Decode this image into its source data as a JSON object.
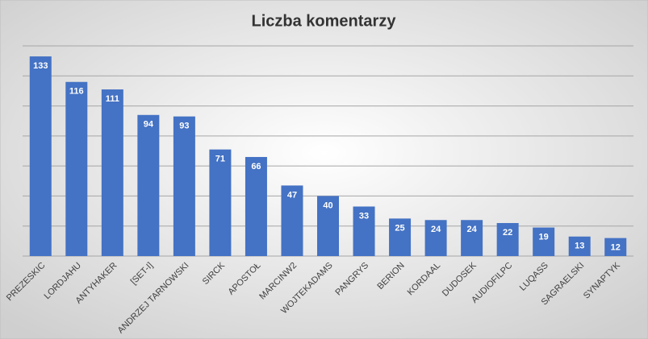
{
  "chart_data": {
    "type": "bar",
    "title": "Liczba komentarzy",
    "categories": [
      "PREZESKIC",
      "LORDJAHU",
      "ANTYHAKER",
      "[SET-I]",
      "ANDRZEJ TARNOWSKI",
      "SIRCK",
      "APOSTOŁ",
      "MARCINW2",
      "WOJTEKADAMS",
      "PANGRYS",
      "BERION",
      "KORDAAL",
      "DUDOSEK",
      "AUDIOFILPC",
      "LUQASS",
      "SAGRAELSKI",
      "SYNAPTYK"
    ],
    "values": [
      133,
      116,
      111,
      94,
      93,
      71,
      66,
      47,
      40,
      33,
      25,
      24,
      24,
      22,
      19,
      13,
      12
    ],
    "color": "#4472c4",
    "ylim": [
      0,
      140
    ],
    "yticks": [
      0,
      20,
      40,
      60,
      80,
      100,
      120,
      140
    ],
    "grid": true
  }
}
